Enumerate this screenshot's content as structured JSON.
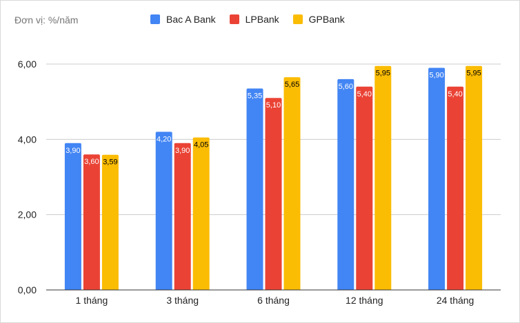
{
  "chart_data": {
    "type": "bar",
    "unit_label": "Đơn vị: %/năm",
    "categories": [
      "1 tháng",
      "3 tháng",
      "6 tháng",
      "12 tháng",
      "24 tháng"
    ],
    "series": [
      {
        "name": "Bac A Bank",
        "color": "#4285F4",
        "values": [
          3.9,
          4.2,
          5.35,
          5.6,
          5.9
        ],
        "labels": [
          "3,90",
          "4,20",
          "5,35",
          "5,60",
          "5,90"
        ]
      },
      {
        "name": "LPBank",
        "color": "#EA4335",
        "values": [
          3.6,
          3.9,
          5.1,
          5.4,
          5.4
        ],
        "labels": [
          "3,60",
          "3,90",
          "5,10",
          "5,40",
          "5,40"
        ]
      },
      {
        "name": "GPBank",
        "color": "#FBBC04",
        "values": [
          3.59,
          4.05,
          5.65,
          5.95,
          5.95
        ],
        "labels": [
          "3,59",
          "4,05",
          "5,65",
          "5,95",
          "5,95"
        ]
      }
    ],
    "ylim": [
      0,
      6
    ],
    "yticks": [
      0,
      2,
      4,
      6
    ],
    "ytick_labels": [
      "0,00",
      "2,00",
      "4,00",
      "6,00"
    ],
    "grid": true,
    "legend_position": "top"
  }
}
